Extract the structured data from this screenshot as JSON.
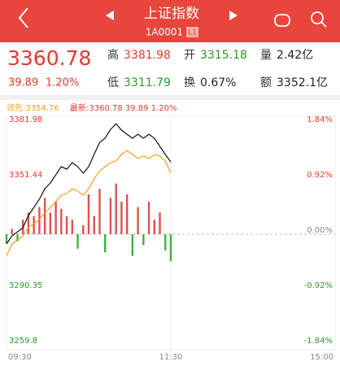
{
  "header": {
    "title": "上证指数",
    "code": "1A0001",
    "badge": "L1"
  },
  "quote": {
    "price": "3360.78",
    "change": "39.89",
    "change_pct": "1.20%",
    "fields": [
      {
        "label": "高",
        "value": "3381.98",
        "color": "#e23b30"
      },
      {
        "label": "开",
        "value": "3315.18",
        "color": "#2a9a2a"
      },
      {
        "label": "量",
        "value": "2.42亿",
        "color": "#222"
      },
      {
        "label": "低",
        "value": "3311.79",
        "color": "#2a9a2a"
      },
      {
        "label": "换",
        "value": "0.67%",
        "color": "#222"
      },
      {
        "label": "额",
        "value": "3352.1亿",
        "color": "#222"
      }
    ]
  },
  "legend": {
    "lead": "领先:3354.76",
    "latest": "最新:3360.78 39.89 1.20%"
  },
  "chart_data": {
    "type": "line",
    "x": [
      0,
      4,
      8,
      12,
      16,
      20,
      24,
      28,
      32,
      36,
      40,
      44,
      48,
      52,
      56,
      60,
      64,
      68,
      72,
      76,
      80,
      84,
      88,
      92,
      96,
      100,
      104,
      108,
      112,
      116,
      120
    ],
    "series": [
      {
        "color": "#111111",
        "values": [
          3315.5,
          3320.0,
          3322.2,
          3324.5,
          3331.2,
          3335.7,
          3340.2,
          3346.0,
          3349.2,
          3353.7,
          3358.2,
          3356.8,
          3360.4,
          3358.2,
          3354.6,
          3358.2,
          3364.9,
          3371.6,
          3373.9,
          3378.8,
          3381.9,
          3378.4,
          3376.1,
          3373.9,
          3376.1,
          3373.9,
          3376.1,
          3373.9,
          3369.4,
          3364.9,
          3360.78
        ]
      },
      {
        "color": "#f0a020",
        "values": [
          3308.8,
          3315.5,
          3317.7,
          3320.0,
          3324.5,
          3326.7,
          3329.0,
          3332.6,
          3335.7,
          3338.9,
          3342.4,
          3343.3,
          3346.0,
          3344.7,
          3342.4,
          3346.0,
          3351.4,
          3355.9,
          3358.2,
          3360.4,
          3361.3,
          3364.9,
          3367.1,
          3364.9,
          3362.7,
          3364.0,
          3362.7,
          3364.9,
          3364.0,
          3361.3,
          3354.76
        ]
      }
    ],
    "bars": {
      "up_color": "#e05050",
      "down_color": "#40b040",
      "values": [
        -5,
        3,
        -4,
        8,
        12,
        10,
        15,
        20,
        12,
        18,
        14,
        10,
        8,
        -8,
        5,
        22,
        10,
        25,
        -10,
        20,
        28,
        18,
        22,
        -12,
        15,
        -6,
        18,
        8,
        12,
        -9,
        -15
      ]
    },
    "xlim": [
      0,
      240
    ],
    "xticks": [
      {
        "value": 0,
        "label": "09:30"
      },
      {
        "value": 120,
        "label": "11:30"
      },
      {
        "value": 240,
        "label": "15:00"
      }
    ],
    "ylim": [
      3259.8,
      3381.98
    ],
    "yticks": [
      3381.98,
      3351.44,
      3290.35,
      3259.8
    ],
    "y2lim": [
      -1.84,
      1.84
    ],
    "y2ticks": [
      {
        "value": 1.84,
        "label": "1.84%"
      },
      {
        "value": 0.92,
        "label": "0.92%"
      },
      {
        "value": 0,
        "label": "0.00%"
      },
      {
        "value": -0.92,
        "label": "-0.92%"
      },
      {
        "value": -1.84,
        "label": "-1.84%"
      }
    ]
  }
}
